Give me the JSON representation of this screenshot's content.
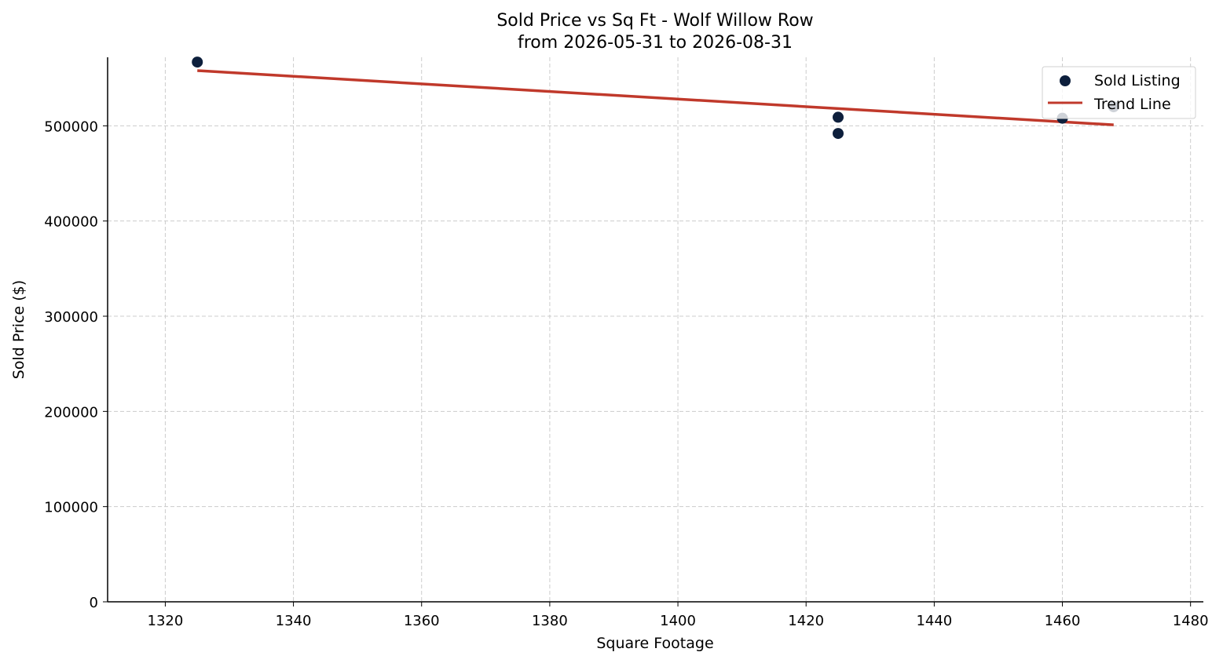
{
  "chart_data": {
    "type": "scatter",
    "title": "Sold Price vs Sq Ft - Wolf Willow Row",
    "subtitle": "from 2026-05-31 to 2026-08-31",
    "xlabel": "Square Footage",
    "ylabel": "Sold Price ($)",
    "xlim": [
      1311,
      1482
    ],
    "ylim": [
      0,
      572000
    ],
    "x_ticks": [
      1320,
      1340,
      1360,
      1380,
      1400,
      1420,
      1440,
      1460,
      1480
    ],
    "y_ticks": [
      0,
      100000,
      200000,
      300000,
      400000,
      500000
    ],
    "grid": true,
    "legend_position": "top-right",
    "series": [
      {
        "name": "Sold Listing",
        "kind": "scatter",
        "color": "#0d1f3c",
        "points": [
          {
            "x": 1325,
            "y": 567000
          },
          {
            "x": 1425,
            "y": 509000
          },
          {
            "x": 1425,
            "y": 492000
          },
          {
            "x": 1460,
            "y": 508000
          },
          {
            "x": 1468,
            "y": 520000
          }
        ]
      },
      {
        "name": "Trend Line",
        "kind": "line",
        "color": "#c0392b",
        "points": [
          {
            "x": 1325,
            "y": 558000
          },
          {
            "x": 1468,
            "y": 501000
          }
        ]
      }
    ]
  }
}
